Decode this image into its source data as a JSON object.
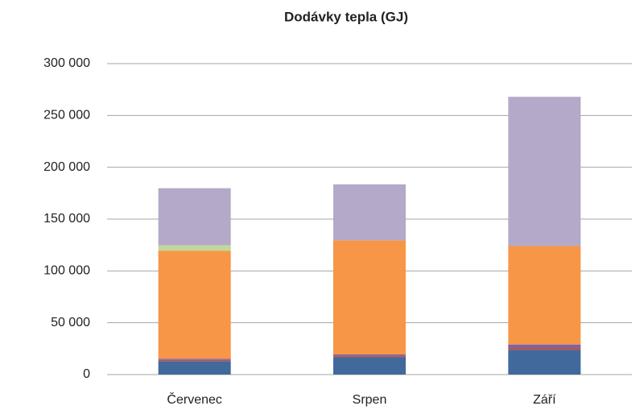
{
  "chart_data": {
    "type": "stacked_bar",
    "title": "Dodávky tepla (GJ)",
    "categories": [
      "Červenec",
      "Srpen",
      "Září"
    ],
    "series": [
      {
        "color": "#41699c",
        "values": [
          13000,
          17000,
          24000
        ]
      },
      {
        "color": "#c0504d",
        "values": [
          1500,
          1500,
          2000
        ]
      },
      {
        "color": "#7a62a8",
        "values": [
          800,
          1000,
          3000
        ]
      },
      {
        "color": "#f79646",
        "values": [
          104000,
          110000,
          95000
        ]
      },
      {
        "color": "#c3d69b",
        "values": [
          5500,
          0,
          0
        ]
      },
      {
        "color": "#b4a9c8",
        "values": [
          55000,
          54000,
          144000
        ]
      }
    ],
    "ylim": [
      0,
      300000
    ],
    "yticks": [
      {
        "value": 0,
        "label": "0"
      },
      {
        "value": 50000,
        "label": "50 000"
      },
      {
        "value": 100000,
        "label": "100 000"
      },
      {
        "value": 150000,
        "label": "150 000"
      },
      {
        "value": 200000,
        "label": "200 000"
      },
      {
        "value": 250000,
        "label": "250 000"
      },
      {
        "value": 300000,
        "label": "300 000"
      }
    ],
    "grid": true
  }
}
